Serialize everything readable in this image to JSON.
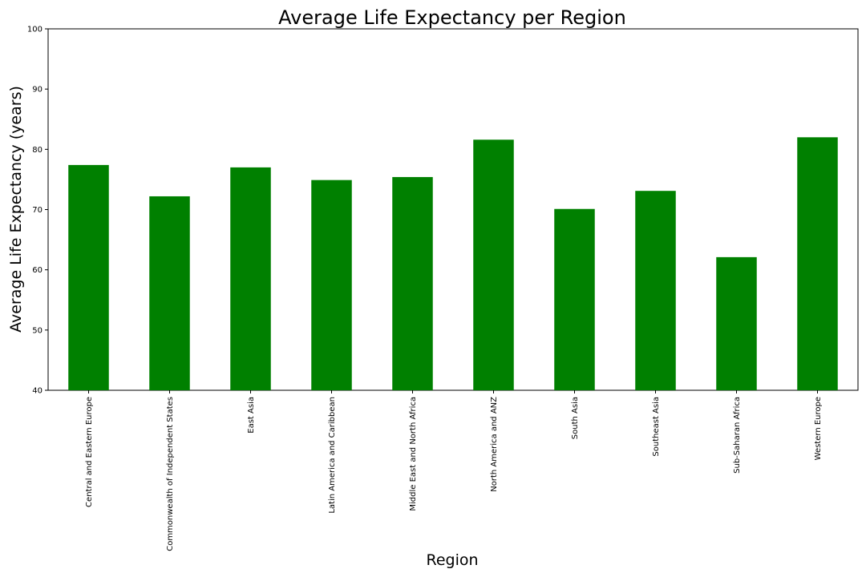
{
  "chart_data": {
    "type": "bar",
    "title": "Average Life Expectancy per Region",
    "xlabel": "Region",
    "ylabel": "Average Life Expectancy (years)",
    "categories": [
      "Central and Eastern Europe",
      "Commonwealth of Independent States",
      "East Asia",
      "Latin America and Caribbean",
      "Middle East and North Africa",
      "North America and ANZ",
      "South Asia",
      "Southeast Asia",
      "Sub-Saharan Africa",
      "Western Europe"
    ],
    "values": [
      77.4,
      72.2,
      77.0,
      74.9,
      75.4,
      81.6,
      70.1,
      73.1,
      62.1,
      82.0
    ],
    "ylim": [
      40,
      100
    ],
    "yticks": [
      40,
      50,
      60,
      70,
      80,
      90,
      100
    ],
    "bar_color": "#008000",
    "grid": false
  }
}
